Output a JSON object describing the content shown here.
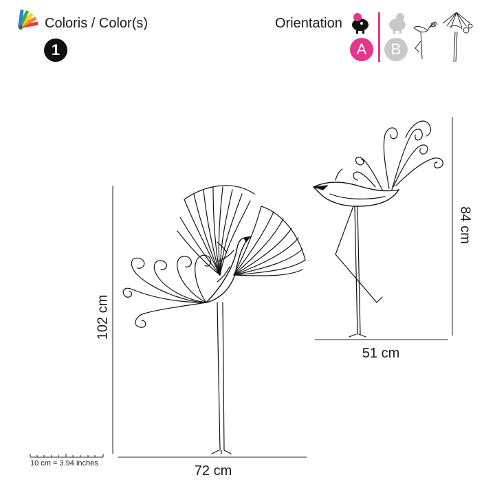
{
  "header": {
    "palette_icon": "color-palette-icon",
    "colors_label": "Coloris / Color(s)",
    "color_count": "1",
    "orientation_label": "Orientation",
    "option_a": "A",
    "option_b": "B"
  },
  "colors": {
    "accent": "#e5358c",
    "inactive": "#c8c8c8",
    "ink": "#1a1a1a"
  },
  "dimensions": {
    "left_height": "102 cm",
    "left_width": "72 cm",
    "right_height": "84 cm",
    "right_width": "51 cm"
  },
  "scale": {
    "label": "10 cm = 3.94 inches"
  }
}
